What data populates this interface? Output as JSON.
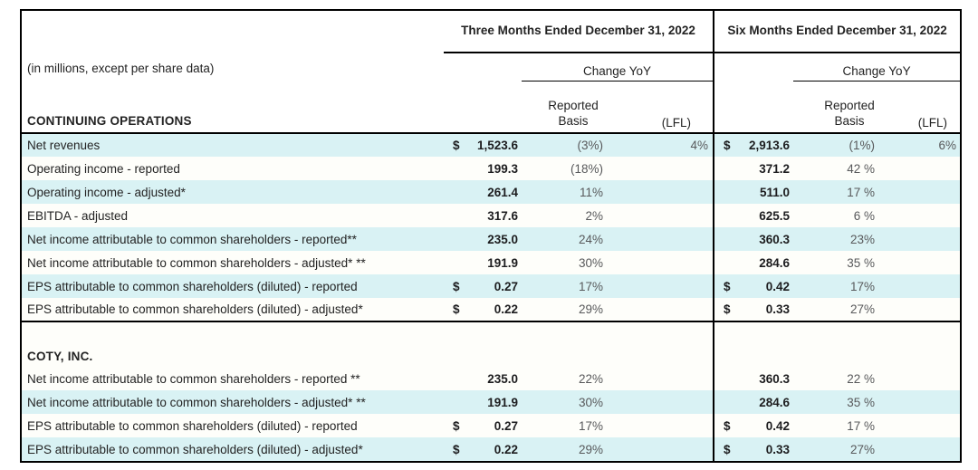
{
  "colors": {
    "stripe": "#d9f2f4",
    "rule": "#000000",
    "percent_text": "#58595b"
  },
  "header": {
    "units_note": "(in millions, except per share data)",
    "section_label": "CONTINUING OPERATIONS",
    "period_columns": [
      {
        "title": "Three Months Ended December 31, 2022",
        "change_label": "Change YoY",
        "reported_line1": "Reported",
        "reported_line2": "Basis",
        "lfl_label": "(LFL)"
      },
      {
        "title": "Six Months Ended December 31, 2022",
        "change_label": "Change YoY",
        "reported_line1": "Reported",
        "reported_line2": "Basis",
        "lfl_label": "(LFL)"
      }
    ]
  },
  "sections": [
    {
      "id": "continuing-operations",
      "rule_after": true,
      "rows": [
        {
          "label": "Net revenues",
          "shaded": true,
          "m3": {
            "currency": "$",
            "value": "1,523.6",
            "reported": "(3%)",
            "lfl": "4%"
          },
          "m6": {
            "currency": "$",
            "value": "2,913.6",
            "reported": "(1%)",
            "lfl": "6%"
          }
        },
        {
          "label": "Operating income - reported",
          "shaded": false,
          "m3": {
            "currency": "",
            "value": "199.3",
            "reported": "(18%)",
            "lfl": ""
          },
          "m6": {
            "currency": "",
            "value": "371.2",
            "reported": "42 %",
            "lfl": ""
          }
        },
        {
          "label": "Operating income - adjusted*",
          "shaded": true,
          "m3": {
            "currency": "",
            "value": "261.4",
            "reported": "11%",
            "lfl": ""
          },
          "m6": {
            "currency": "",
            "value": "511.0",
            "reported": "17 %",
            "lfl": ""
          }
        },
        {
          "label": "EBITDA - adjusted",
          "shaded": false,
          "m3": {
            "currency": "",
            "value": "317.6",
            "reported": "2%",
            "lfl": ""
          },
          "m6": {
            "currency": "",
            "value": "625.5",
            "reported": "6 %",
            "lfl": ""
          }
        },
        {
          "label": "Net income attributable to common shareholders - reported**",
          "shaded": true,
          "m3": {
            "currency": "",
            "value": "235.0",
            "reported": "24%",
            "lfl": ""
          },
          "m6": {
            "currency": "",
            "value": "360.3",
            "reported": "23%",
            "lfl": ""
          }
        },
        {
          "label": "Net income attributable to common shareholders - adjusted* **",
          "shaded": false,
          "m3": {
            "currency": "",
            "value": "191.9",
            "reported": "30%",
            "lfl": ""
          },
          "m6": {
            "currency": "",
            "value": "284.6",
            "reported": "35 %",
            "lfl": ""
          }
        },
        {
          "label": "EPS attributable to common shareholders (diluted) - reported",
          "shaded": true,
          "m3": {
            "currency": "$",
            "value": "0.27",
            "reported": "17%",
            "lfl": ""
          },
          "m6": {
            "currency": "$",
            "value": "0.42",
            "reported": "17%",
            "lfl": ""
          }
        },
        {
          "label": "EPS attributable to common shareholders (diluted) - adjusted*",
          "shaded": false,
          "m3": {
            "currency": "$",
            "value": "0.22",
            "reported": "29%",
            "lfl": ""
          },
          "m6": {
            "currency": "$",
            "value": "0.33",
            "reported": "27%",
            "lfl": ""
          }
        }
      ]
    },
    {
      "id": "coty-inc",
      "title": "COTY, INC.",
      "rule_after": false,
      "rows": [
        {
          "label": "Net income attributable to common shareholders - reported **",
          "shaded": false,
          "m3": {
            "currency": "",
            "value": "235.0",
            "reported": "22%",
            "lfl": ""
          },
          "m6": {
            "currency": "",
            "value": "360.3",
            "reported": "22 %",
            "lfl": ""
          }
        },
        {
          "label": "Net income attributable to common shareholders - adjusted* **",
          "shaded": true,
          "m3": {
            "currency": "",
            "value": "191.9",
            "reported": "30%",
            "lfl": ""
          },
          "m6": {
            "currency": "",
            "value": "284.6",
            "reported": "35 %",
            "lfl": ""
          }
        },
        {
          "label": "EPS attributable to common shareholders (diluted) - reported",
          "shaded": false,
          "m3": {
            "currency": "$",
            "value": "0.27",
            "reported": "17%",
            "lfl": ""
          },
          "m6": {
            "currency": "$",
            "value": "0.42",
            "reported": "17 %",
            "lfl": ""
          }
        },
        {
          "label": "EPS attributable to common shareholders (diluted) - adjusted*",
          "shaded": true,
          "m3": {
            "currency": "$",
            "value": "0.22",
            "reported": "29%",
            "lfl": ""
          },
          "m6": {
            "currency": "$",
            "value": "0.33",
            "reported": "27%",
            "lfl": ""
          }
        }
      ]
    }
  ]
}
